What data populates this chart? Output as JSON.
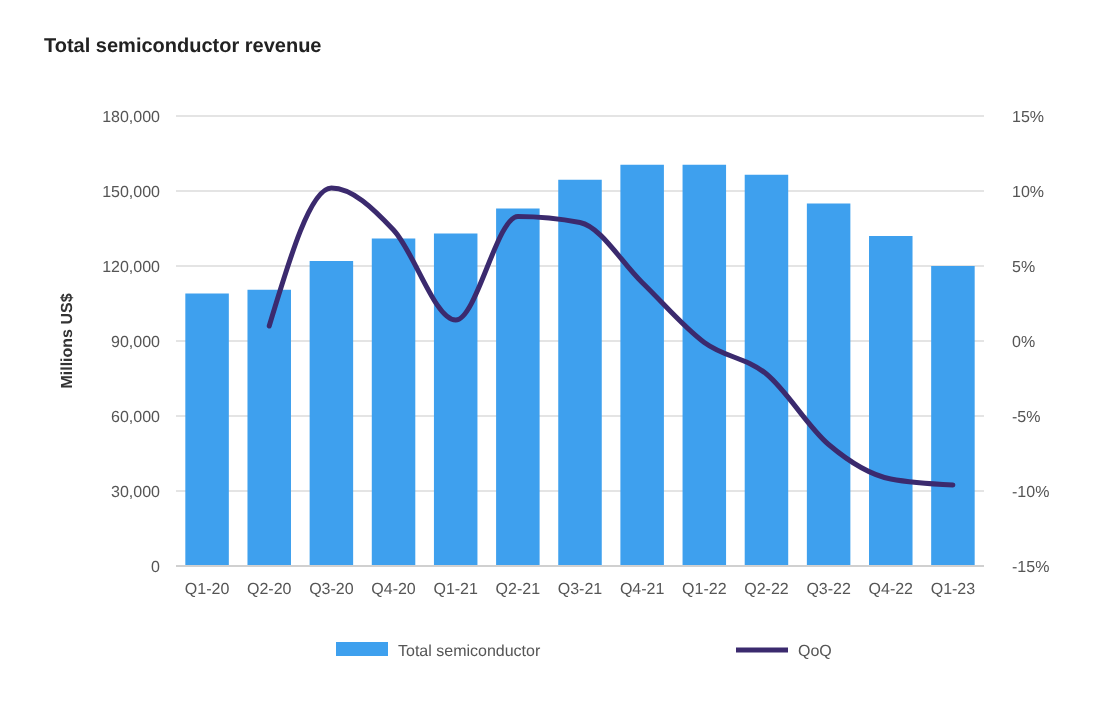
{
  "chart_data": {
    "type": "bar",
    "title": "Total semiconductor revenue",
    "ylabel": "Millions US$",
    "categories": [
      "Q1-20",
      "Q2-20",
      "Q3-20",
      "Q4-20",
      "Q1-21",
      "Q2-21",
      "Q3-21",
      "Q4-21",
      "Q1-22",
      "Q2-22",
      "Q3-22",
      "Q4-22",
      "Q1-23"
    ],
    "series": [
      {
        "name": "Total semiconductor",
        "color": "#3ea0ee",
        "values": [
          109000,
          110500,
          122000,
          131000,
          133000,
          143000,
          154500,
          160500,
          160500,
          156500,
          145000,
          132000,
          120000
        ]
      },
      {
        "name": "QoQ",
        "type": "line",
        "axis": "y2",
        "color": "#3b2a6e",
        "values": [
          null,
          1,
          10.2,
          7.4,
          1.4,
          8.3,
          7.9,
          3.9,
          -0.1,
          -2.2,
          -6.9,
          -9.2,
          -9.6
        ]
      }
    ],
    "ylim": [
      0,
      180000
    ],
    "yticks": [
      {
        "value": 0,
        "label": "0"
      },
      {
        "value": 30000,
        "label": "30,000"
      },
      {
        "value": 60000,
        "label": "60,000"
      },
      {
        "value": 90000,
        "label": "90,000"
      },
      {
        "value": 120000,
        "label": "120,000"
      },
      {
        "value": 150000,
        "label": "150,000"
      },
      {
        "value": 180000,
        "label": "180,000"
      }
    ],
    "y2lim": [
      -15,
      15
    ],
    "y2ticks": [
      {
        "value": -15,
        "label": "-15%"
      },
      {
        "value": -10,
        "label": "-10%"
      },
      {
        "value": -5,
        "label": "-5%"
      },
      {
        "value": 0,
        "label": "0%"
      },
      {
        "value": 5,
        "label": "5%"
      },
      {
        "value": 10,
        "label": "10%"
      },
      {
        "value": 15,
        "label": "15%"
      }
    ],
    "grid": "y",
    "legend": "bottom"
  }
}
